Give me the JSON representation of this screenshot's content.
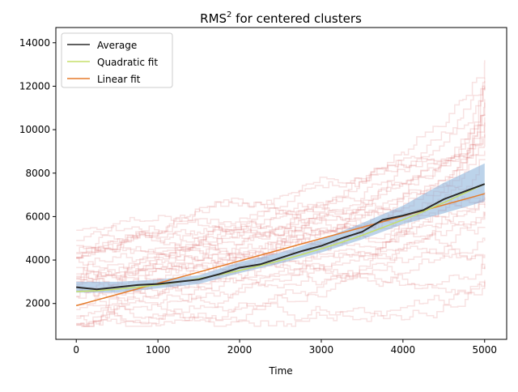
{
  "chart_data": {
    "type": "line",
    "title_main": "RMS",
    "title_sup": "2",
    "title_rest": " for centered clusters",
    "xlabel": "Time",
    "ylabel": "",
    "xlim": [
      -250,
      5270
    ],
    "ylim": [
      350,
      14700
    ],
    "x_ticks": [
      0,
      1000,
      2000,
      3000,
      4000,
      5000
    ],
    "y_ticks": [
      2000,
      4000,
      6000,
      8000,
      10000,
      12000,
      14000
    ],
    "grid": false,
    "legend_position": "top-left",
    "series": [
      {
        "name": "Average",
        "color": "#2b2b2b",
        "x": [
          0,
          250,
          500,
          750,
          1000,
          1250,
          1500,
          1750,
          2000,
          2250,
          2500,
          2750,
          3000,
          3250,
          3500,
          3750,
          4000,
          4250,
          4500,
          4750,
          5000
        ],
        "y": [
          2750,
          2650,
          2750,
          2850,
          2900,
          3000,
          3100,
          3350,
          3650,
          3800,
          4100,
          4400,
          4650,
          5000,
          5300,
          5850,
          6050,
          6300,
          6800,
          7150,
          7500
        ]
      },
      {
        "name": "Quadratic fit",
        "color": "#c5df6a",
        "x": [
          0,
          250,
          500,
          750,
          1000,
          1250,
          1500,
          1750,
          2000,
          2250,
          2500,
          2750,
          3000,
          3250,
          3500,
          3750,
          4000,
          4250,
          4500,
          4750,
          5000
        ],
        "y": [
          2550,
          2590,
          2660,
          2750,
          2860,
          2990,
          3140,
          3320,
          3520,
          3740,
          3980,
          4240,
          4520,
          4820,
          5140,
          5490,
          5850,
          6230,
          6640,
          7070,
          7500
        ]
      },
      {
        "name": "Linear fit",
        "color": "#e57c2c",
        "x": [
          0,
          5000
        ],
        "y": [
          1900,
          7050
        ]
      }
    ],
    "band": {
      "color": "#8fb5dc",
      "x": [
        0,
        500,
        1000,
        1500,
        2000,
        2500,
        3000,
        3500,
        4000,
        4500,
        5000
      ],
      "lower": [
        2500,
        2500,
        2700,
        2900,
        3400,
        3850,
        4350,
        4950,
        5650,
        6150,
        6700
      ],
      "upper": [
        3000,
        3000,
        3100,
        3300,
        3900,
        4350,
        4950,
        5700,
        6500,
        7550,
        8450
      ]
    },
    "trajectory_color": "#d9605e"
  }
}
